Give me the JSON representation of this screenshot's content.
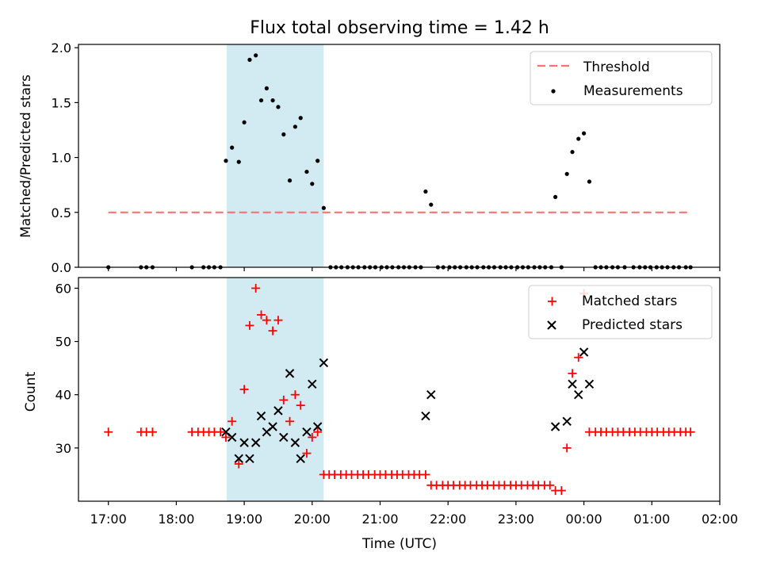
{
  "chart_data": {
    "title": "Flux total observing time = 1.42 h",
    "xlabel": "Time (UTC)",
    "x_ticks": [
      "17:00",
      "18:00",
      "19:00",
      "20:00",
      "21:00",
      "22:00",
      "23:00",
      "00:00",
      "01:00",
      "02:00"
    ],
    "xlim_hours": [
      16.56,
      26.0
    ],
    "observing_window_hours": [
      18.74,
      20.17
    ],
    "window_color": "#add8e6",
    "panels": [
      {
        "type": "scatter",
        "ylabel": "Matched/Predicted stars",
        "ylim": [
          0,
          2.03
        ],
        "y_ticks": [
          "0.0",
          "0.5",
          "1.0",
          "1.5",
          "2.0"
        ],
        "legend_position": "top-right",
        "threshold": {
          "name": "Threshold",
          "value": 0.5,
          "x_range": [
            17.0,
            25.55
          ],
          "color": "#ff7070"
        },
        "series": [
          {
            "name": "Measurements",
            "marker": "dot",
            "color": "#000000",
            "points": [
              [
                17.0,
                0
              ],
              [
                17.48,
                0
              ],
              [
                17.56,
                0
              ],
              [
                17.65,
                0
              ],
              [
                18.23,
                0
              ],
              [
                18.4,
                0
              ],
              [
                18.48,
                0
              ],
              [
                18.56,
                0
              ],
              [
                18.65,
                0
              ],
              [
                18.73,
                0.97
              ],
              [
                18.82,
                1.09
              ],
              [
                18.92,
                0.96
              ],
              [
                19.0,
                1.32
              ],
              [
                19.08,
                1.89
              ],
              [
                19.17,
                1.93
              ],
              [
                19.25,
                1.52
              ],
              [
                19.33,
                1.63
              ],
              [
                19.42,
                1.52
              ],
              [
                19.5,
                1.46
              ],
              [
                19.58,
                1.21
              ],
              [
                19.67,
                0.79
              ],
              [
                19.75,
                1.28
              ],
              [
                19.83,
                1.36
              ],
              [
                19.92,
                0.87
              ],
              [
                20.0,
                0.76
              ],
              [
                20.08,
                0.97
              ],
              [
                20.17,
                0.54
              ],
              [
                20.27,
                0
              ],
              [
                20.35,
                0
              ],
              [
                20.43,
                0
              ],
              [
                20.52,
                0
              ],
              [
                20.6,
                0
              ],
              [
                20.68,
                0
              ],
              [
                20.77,
                0
              ],
              [
                20.85,
                0
              ],
              [
                20.93,
                0
              ],
              [
                21.02,
                0
              ],
              [
                21.1,
                0
              ],
              [
                21.18,
                0
              ],
              [
                21.27,
                0
              ],
              [
                21.35,
                0
              ],
              [
                21.43,
                0
              ],
              [
                21.52,
                0
              ],
              [
                21.6,
                0
              ],
              [
                21.67,
                0.69
              ],
              [
                21.75,
                0.57
              ],
              [
                21.85,
                0
              ],
              [
                21.93,
                0
              ],
              [
                22.02,
                0
              ],
              [
                22.1,
                0
              ],
              [
                22.18,
                0
              ],
              [
                22.27,
                0
              ],
              [
                22.35,
                0
              ],
              [
                22.43,
                0
              ],
              [
                22.52,
                0
              ],
              [
                22.6,
                0
              ],
              [
                22.68,
                0
              ],
              [
                22.77,
                0
              ],
              [
                22.85,
                0
              ],
              [
                22.93,
                0
              ],
              [
                23.02,
                0
              ],
              [
                23.1,
                0
              ],
              [
                23.18,
                0
              ],
              [
                23.27,
                0
              ],
              [
                23.35,
                0
              ],
              [
                23.43,
                0
              ],
              [
                23.52,
                0
              ],
              [
                23.58,
                0.64
              ],
              [
                23.67,
                0
              ],
              [
                23.75,
                0.85
              ],
              [
                23.83,
                1.05
              ],
              [
                23.92,
                1.17
              ],
              [
                24.0,
                1.22
              ],
              [
                24.08,
                0.78
              ],
              [
                24.17,
                0
              ],
              [
                24.25,
                0
              ],
              [
                24.33,
                0
              ],
              [
                24.42,
                0
              ],
              [
                24.5,
                0
              ],
              [
                24.6,
                0
              ],
              [
                24.73,
                0
              ],
              [
                24.82,
                0
              ],
              [
                24.9,
                0
              ],
              [
                24.98,
                0
              ],
              [
                25.07,
                0
              ],
              [
                25.15,
                0
              ],
              [
                25.23,
                0
              ],
              [
                25.32,
                0
              ],
              [
                25.4,
                0
              ],
              [
                25.5,
                0
              ],
              [
                25.57,
                0
              ]
            ]
          }
        ]
      },
      {
        "type": "scatter",
        "ylabel": "Count",
        "ylim": [
          20,
          62
        ],
        "y_ticks": [
          "30",
          "40",
          "50",
          "60"
        ],
        "legend_position": "top-right",
        "series": [
          {
            "name": "Matched stars",
            "marker": "plus",
            "color": "#ff0000",
            "points": [
              [
                17.0,
                33
              ],
              [
                17.48,
                33
              ],
              [
                17.56,
                33
              ],
              [
                17.65,
                33
              ],
              [
                18.23,
                33
              ],
              [
                18.32,
                33
              ],
              [
                18.4,
                33
              ],
              [
                18.48,
                33
              ],
              [
                18.56,
                33
              ],
              [
                18.65,
                33
              ],
              [
                18.73,
                32
              ],
              [
                18.82,
                35
              ],
              [
                18.92,
                27
              ],
              [
                19.0,
                41
              ],
              [
                19.08,
                53
              ],
              [
                19.17,
                60
              ],
              [
                19.25,
                55
              ],
              [
                19.33,
                54
              ],
              [
                19.42,
                52
              ],
              [
                19.5,
                54
              ],
              [
                19.58,
                39
              ],
              [
                19.67,
                35
              ],
              [
                19.75,
                40
              ],
              [
                19.83,
                38
              ],
              [
                19.92,
                29
              ],
              [
                20.0,
                32
              ],
              [
                20.08,
                33
              ],
              [
                20.17,
                25
              ],
              [
                20.25,
                25
              ],
              [
                20.33,
                25
              ],
              [
                20.42,
                25
              ],
              [
                20.5,
                25
              ],
              [
                20.58,
                25
              ],
              [
                20.67,
                25
              ],
              [
                20.75,
                25
              ],
              [
                20.83,
                25
              ],
              [
                20.92,
                25
              ],
              [
                21.0,
                25
              ],
              [
                21.08,
                25
              ],
              [
                21.17,
                25
              ],
              [
                21.25,
                25
              ],
              [
                21.33,
                25
              ],
              [
                21.42,
                25
              ],
              [
                21.5,
                25
              ],
              [
                21.58,
                25
              ],
              [
                21.67,
                25
              ],
              [
                21.75,
                23
              ],
              [
                21.83,
                23
              ],
              [
                21.92,
                23
              ],
              [
                22.0,
                23
              ],
              [
                22.08,
                23
              ],
              [
                22.17,
                23
              ],
              [
                22.25,
                23
              ],
              [
                22.33,
                23
              ],
              [
                22.42,
                23
              ],
              [
                22.5,
                23
              ],
              [
                22.58,
                23
              ],
              [
                22.67,
                23
              ],
              [
                22.75,
                23
              ],
              [
                22.83,
                23
              ],
              [
                22.92,
                23
              ],
              [
                23.0,
                23
              ],
              [
                23.08,
                23
              ],
              [
                23.17,
                23
              ],
              [
                23.25,
                23
              ],
              [
                23.33,
                23
              ],
              [
                23.42,
                23
              ],
              [
                23.5,
                23
              ],
              [
                23.58,
                22
              ],
              [
                23.67,
                22
              ],
              [
                23.75,
                30
              ],
              [
                23.83,
                44
              ],
              [
                23.92,
                47
              ],
              [
                24.0,
                59
              ],
              [
                24.08,
                33
              ],
              [
                24.17,
                33
              ],
              [
                24.25,
                33
              ],
              [
                24.33,
                33
              ],
              [
                24.42,
                33
              ],
              [
                24.5,
                33
              ],
              [
                24.58,
                33
              ],
              [
                24.67,
                33
              ],
              [
                24.75,
                33
              ],
              [
                24.83,
                33
              ],
              [
                24.92,
                33
              ],
              [
                25.0,
                33
              ],
              [
                25.08,
                33
              ],
              [
                25.17,
                33
              ],
              [
                25.25,
                33
              ],
              [
                25.33,
                33
              ],
              [
                25.42,
                33
              ],
              [
                25.5,
                33
              ],
              [
                25.57,
                33
              ]
            ]
          },
          {
            "name": "Predicted stars",
            "marker": "x",
            "color": "#000000",
            "points": [
              [
                18.73,
                33
              ],
              [
                18.82,
                32
              ],
              [
                18.92,
                28
              ],
              [
                19.0,
                31
              ],
              [
                19.08,
                28
              ],
              [
                19.17,
                31
              ],
              [
                19.25,
                36
              ],
              [
                19.33,
                33
              ],
              [
                19.42,
                34
              ],
              [
                19.5,
                37
              ],
              [
                19.58,
                32
              ],
              [
                19.67,
                44
              ],
              [
                19.75,
                31
              ],
              [
                19.83,
                28
              ],
              [
                19.92,
                33
              ],
              [
                20.0,
                42
              ],
              [
                20.08,
                34
              ],
              [
                20.17,
                46
              ],
              [
                21.67,
                36
              ],
              [
                21.75,
                40
              ],
              [
                23.58,
                34
              ],
              [
                23.75,
                35
              ],
              [
                23.83,
                42
              ],
              [
                23.92,
                40
              ],
              [
                24.0,
                48
              ],
              [
                24.08,
                42
              ]
            ]
          }
        ]
      }
    ]
  }
}
